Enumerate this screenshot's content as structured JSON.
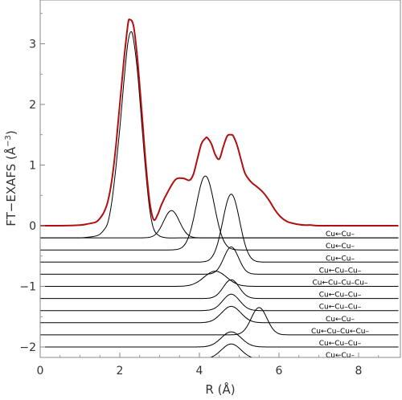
{
  "chart_data": {
    "type": "line",
    "title": "",
    "xlabel": "R (Å)",
    "ylabel_main": "FT−EXAFS (Å",
    "ylabel_sup": "−3",
    "ylabel_close": ")",
    "xlim": [
      0,
      9
    ],
    "ylim": [
      -2.2,
      3.6
    ],
    "xticks": [
      0,
      2,
      4,
      6,
      8
    ],
    "yticks": [
      -2,
      -1,
      0,
      1,
      2,
      3
    ],
    "ytick_labels": [
      "−2",
      "−1",
      "0",
      "1",
      "2",
      "3"
    ],
    "grid": false,
    "colors": {
      "total": "#b01010",
      "component": "#000000",
      "frame": "#888888"
    },
    "total_fit": {
      "x": [
        0,
        0.5,
        1.0,
        1.2,
        1.4,
        1.5,
        1.6,
        1.7,
        1.8,
        1.9,
        2.0,
        2.1,
        2.2,
        2.25,
        2.35,
        2.45,
        2.55,
        2.65,
        2.75,
        2.85,
        2.95,
        3.05,
        3.2,
        3.4,
        3.6,
        3.75,
        3.85,
        3.95,
        4.05,
        4.15,
        4.2,
        4.3,
        4.4,
        4.5,
        4.6,
        4.7,
        4.8,
        4.85,
        4.95,
        5.05,
        5.15,
        5.3,
        5.45,
        5.6,
        5.75,
        5.9,
        6.05,
        6.2,
        6.35,
        6.5,
        6.65,
        6.8,
        7.0,
        7.5,
        8.0,
        8.5,
        9.0
      ],
      "y": [
        0,
        0,
        0.01,
        0.03,
        0.06,
        0.12,
        0.22,
        0.4,
        0.75,
        1.3,
        2.0,
        2.7,
        3.3,
        3.4,
        3.28,
        2.7,
        1.9,
        1.05,
        0.4,
        0.1,
        0.18,
        0.35,
        0.55,
        0.76,
        0.78,
        0.75,
        0.85,
        1.1,
        1.35,
        1.44,
        1.45,
        1.35,
        1.17,
        1.1,
        1.3,
        1.48,
        1.5,
        1.48,
        1.32,
        1.08,
        0.86,
        0.72,
        0.64,
        0.55,
        0.42,
        0.26,
        0.14,
        0.07,
        0.04,
        0.02,
        0.01,
        0.01,
        0,
        0,
        0,
        0,
        0
      ]
    },
    "first_shell": {
      "x": [
        0,
        0.5,
        1.0,
        1.2,
        1.4,
        1.5,
        1.6,
        1.7,
        1.8,
        1.9,
        2.0,
        2.1,
        2.2,
        2.28,
        2.35,
        2.45,
        2.55,
        2.65,
        2.75,
        2.85,
        3.0,
        3.2,
        3.5,
        4.0,
        5.0,
        6.0,
        7.0,
        8.0,
        9.0
      ],
      "y": [
        -0.2,
        -0.2,
        -0.2,
        -0.19,
        -0.17,
        -0.14,
        -0.07,
        0.05,
        0.4,
        0.95,
        1.6,
        2.35,
        3.0,
        3.2,
        3.05,
        2.5,
        1.7,
        0.9,
        0.28,
        -0.05,
        -0.17,
        -0.2,
        -0.2,
        -0.2,
        -0.2,
        -0.2,
        -0.2,
        -0.2,
        -0.2
      ]
    },
    "paths": [
      {
        "label": "Cu←Cu–",
        "baseline": -0.2,
        "center": 3.3,
        "width": 0.28,
        "height": 0.45
      },
      {
        "label": "Cu←Cu–",
        "baseline": -0.4,
        "center": 4.15,
        "width": 0.32,
        "height": 1.22
      },
      {
        "label": "Cu←Cu–",
        "baseline": -0.6,
        "center": 4.8,
        "width": 0.3,
        "height": 1.12
      },
      {
        "label": "Cu←Cu–Cu–",
        "baseline": -0.8,
        "center": 4.8,
        "width": 0.26,
        "height": 0.45
      },
      {
        "label": "Cu←Cu–Cu–Cu–",
        "baseline": -1.0,
        "center": 4.4,
        "width": 0.4,
        "height": 0.25
      },
      {
        "label": "Cu←Cu–Cu–",
        "baseline": -1.2,
        "center": 4.8,
        "width": 0.28,
        "height": 0.31
      },
      {
        "label": "Cu←Cu–Cu–",
        "baseline": -1.4,
        "center": 4.8,
        "width": 0.3,
        "height": 0.27
      },
      {
        "label": "Cu←Cu–",
        "baseline": -1.6,
        "center": 4.8,
        "width": 0.34,
        "height": 0.27
      },
      {
        "label": "Cu←Cu–Cu←Cu–",
        "baseline": -1.8,
        "center": 5.5,
        "width": 0.28,
        "height": 0.45
      },
      {
        "label": "Cu←Cu–Cu–",
        "baseline": -2.0,
        "center": 4.8,
        "width": 0.35,
        "height": 0.25
      },
      {
        "label": "Cu←Cu–",
        "baseline": -2.2,
        "center": 4.8,
        "width": 0.35,
        "height": 0.25
      }
    ]
  }
}
